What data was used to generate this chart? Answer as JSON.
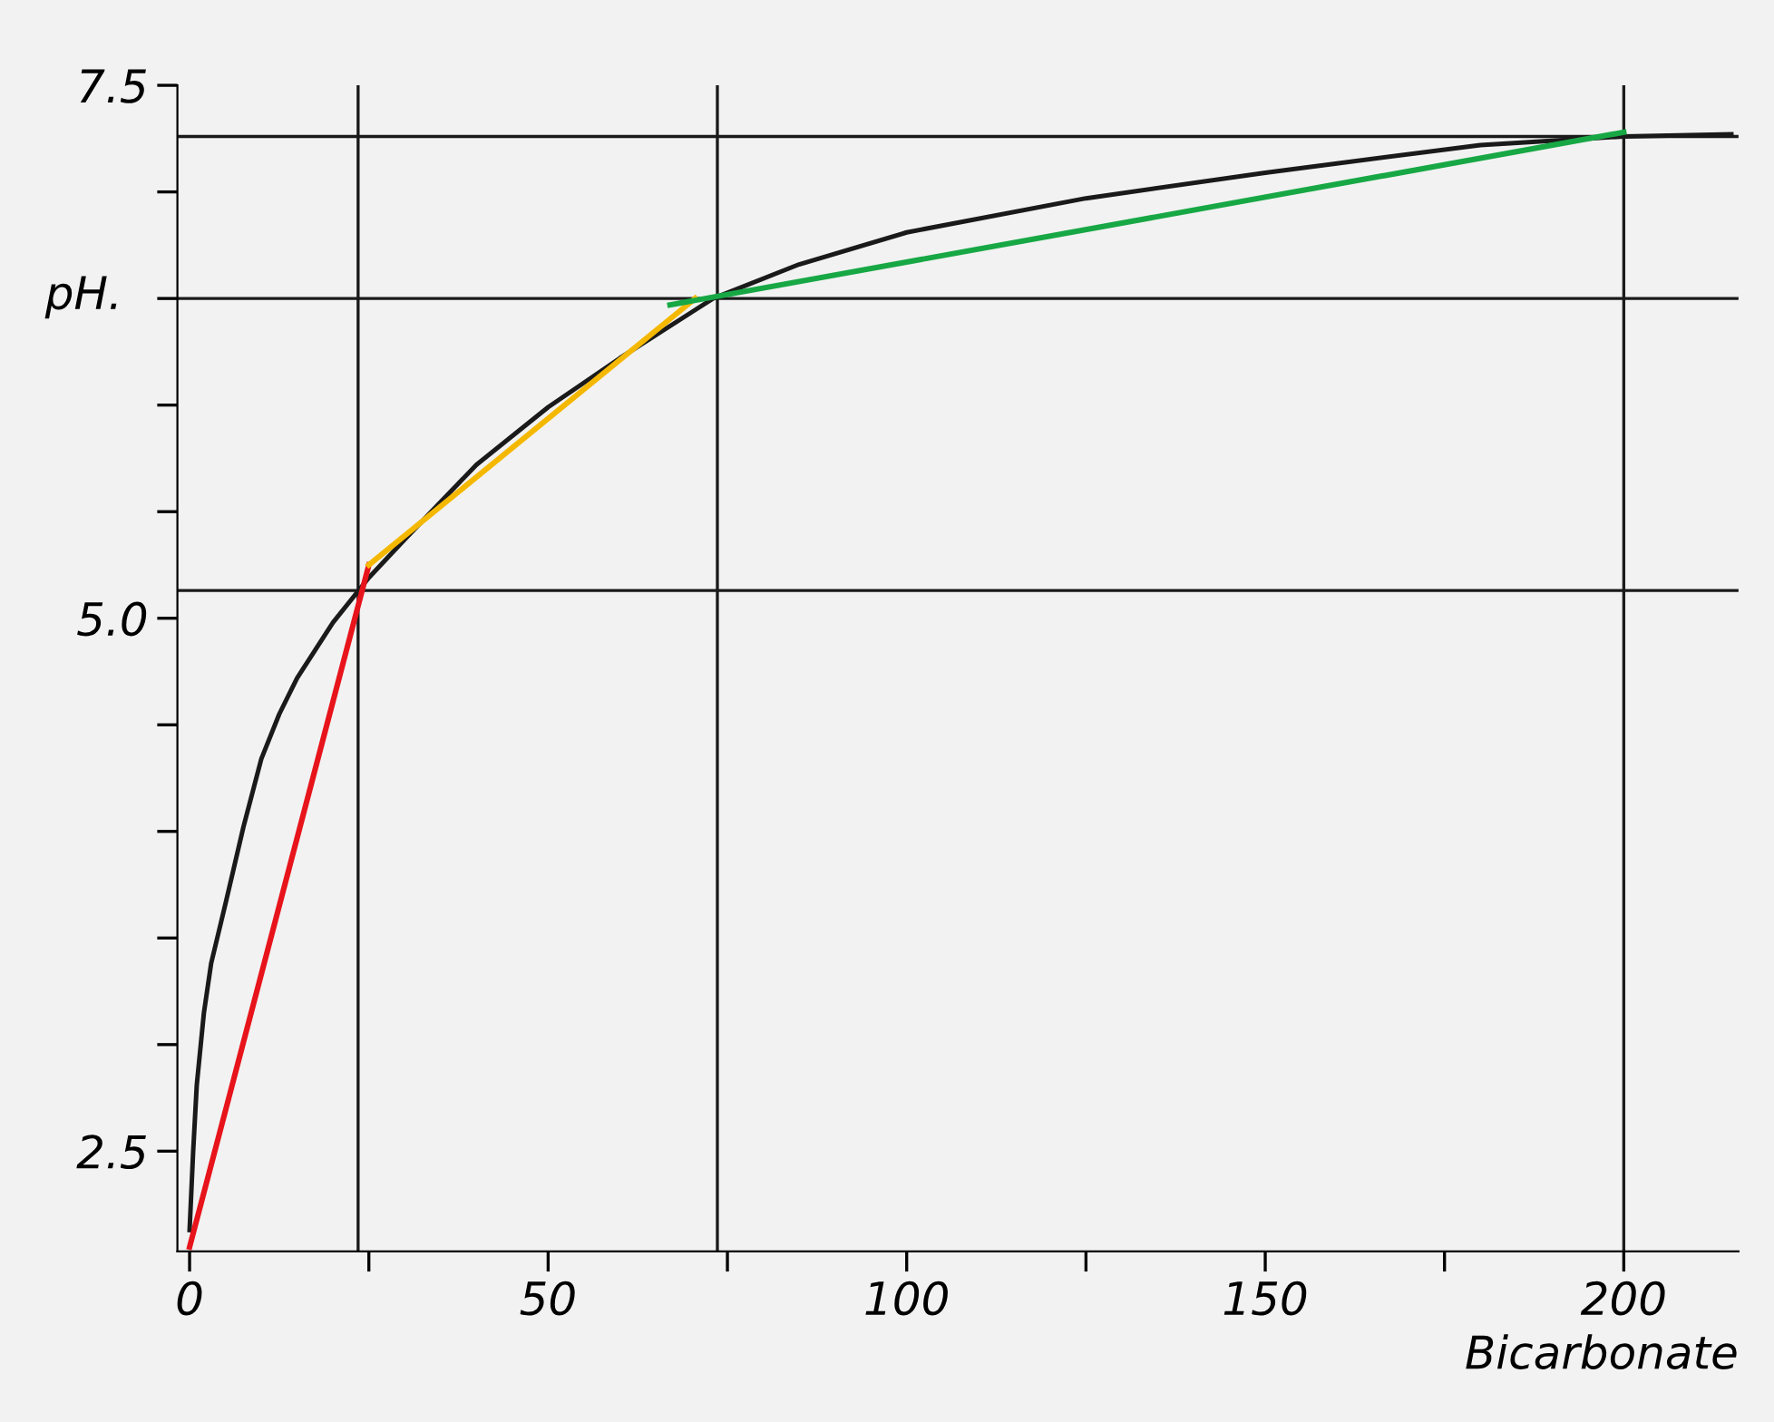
{
  "chart_data": {
    "type": "line",
    "xlabel": "Bicarbonate",
    "ylabel": "pH.",
    "xlim": [
      -1.7,
      216
    ],
    "ylim": [
      2.03,
      7.5
    ],
    "xticks": [
      0,
      {
        "value": 25,
        "label": null
      },
      50,
      {
        "value": 75,
        "label": null
      },
      100,
      {
        "value": 125,
        "label": null
      },
      150,
      {
        "value": 175,
        "label": null
      },
      200
    ],
    "yticks": [
      2.5,
      {
        "value": 3,
        "label": null
      },
      {
        "value": 3.5,
        "label": null
      },
      {
        "value": 4,
        "label": null
      },
      {
        "value": 4.5,
        "label": null
      },
      {
        "value": 5,
        "label": "5.0"
      },
      {
        "value": 5.5,
        "label": null
      },
      {
        "value": 6,
        "label": null
      },
      {
        "value": 6.5,
        "label": null
      },
      {
        "value": 7,
        "label": null
      },
      7.5
    ],
    "grid": false,
    "legend": false,
    "marker": "none",
    "line_style": "solid",
    "series": [
      {
        "color": "#1a1a1a",
        "x": [
          0,
          0.5,
          1,
          2,
          3,
          5,
          7.5,
          10,
          12.5,
          15,
          20,
          25,
          30,
          40,
          50,
          60,
          73,
          85,
          100,
          125,
          150,
          180,
          200,
          215
        ],
        "values": [
          2.13,
          2.5,
          2.81,
          3.15,
          3.38,
          3.66,
          4.02,
          4.34,
          4.55,
          4.72,
          4.98,
          5.19,
          5.37,
          5.72,
          5.99,
          6.22,
          6.5,
          6.66,
          6.81,
          6.97,
          7.09,
          7.22,
          7.26,
          7.27
        ]
      },
      {
        "color": "#e8141b",
        "x": [
          0,
          25
        ],
        "values": [
          2.05,
          5.25
        ]
      },
      {
        "color": "#f5b800",
        "x": [
          25,
          70.5
        ],
        "values": [
          5.25,
          6.5
        ]
      },
      {
        "color": "#17a845",
        "x": [
          67,
          200
        ],
        "values": [
          6.47,
          7.28
        ]
      }
    ],
    "ref_lines": [
      {
        "axis": "y",
        "value": 7.26,
        "color": "#1a1a1a"
      },
      {
        "axis": "y",
        "value": 6.5,
        "color": "#1a1a1a"
      },
      {
        "axis": "y",
        "value": 5.13,
        "color": "#1a1a1a"
      },
      {
        "axis": "x",
        "value": 23.5,
        "color": "#1a1a1a"
      },
      {
        "axis": "x",
        "value": 73.6,
        "color": "#1a1a1a"
      },
      {
        "axis": "x",
        "value": 200,
        "color": "#1a1a1a"
      }
    ]
  }
}
